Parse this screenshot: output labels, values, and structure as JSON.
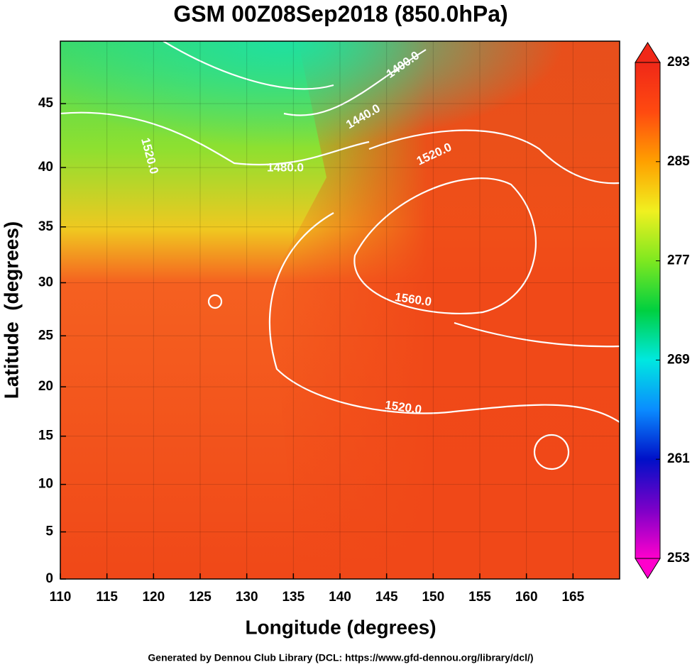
{
  "chart_data": {
    "type": "map",
    "title": "GSM 00Z08Sep2018 (850.0hPa)",
    "x_label": "Longitude (degrees)",
    "y_label": "Latitude  (degrees)",
    "projection": "mercator",
    "xlim": [
      110,
      170
    ],
    "ylim": [
      0,
      49.5
    ],
    "xticks": [
      110,
      115,
      120,
      125,
      130,
      135,
      140,
      145,
      150,
      155,
      160,
      165
    ],
    "yticks": [
      0,
      5,
      10,
      15,
      20,
      25,
      30,
      35,
      40,
      45
    ],
    "colorbar": {
      "lim": [
        253,
        293
      ],
      "ticks": [
        293,
        285,
        277,
        269,
        261,
        253
      ],
      "colors": [
        "#ff00cc",
        "#7a00c8",
        "#0010c8",
        "#0a8cff",
        "#00e8e0",
        "#00d040",
        "#7ee820",
        "#f0f020",
        "#ffa000",
        "#ff4a10",
        "#f02818"
      ]
    },
    "contour_labels": [
      "1400.0",
      "1440.0",
      "1480.0",
      "1520.0",
      "1520.0",
      "1560.0",
      "1520.0"
    ],
    "footer": "Generated by Dennou Club Library (DCL: https://www.gfd-dennou.org/library/dcl/)"
  }
}
